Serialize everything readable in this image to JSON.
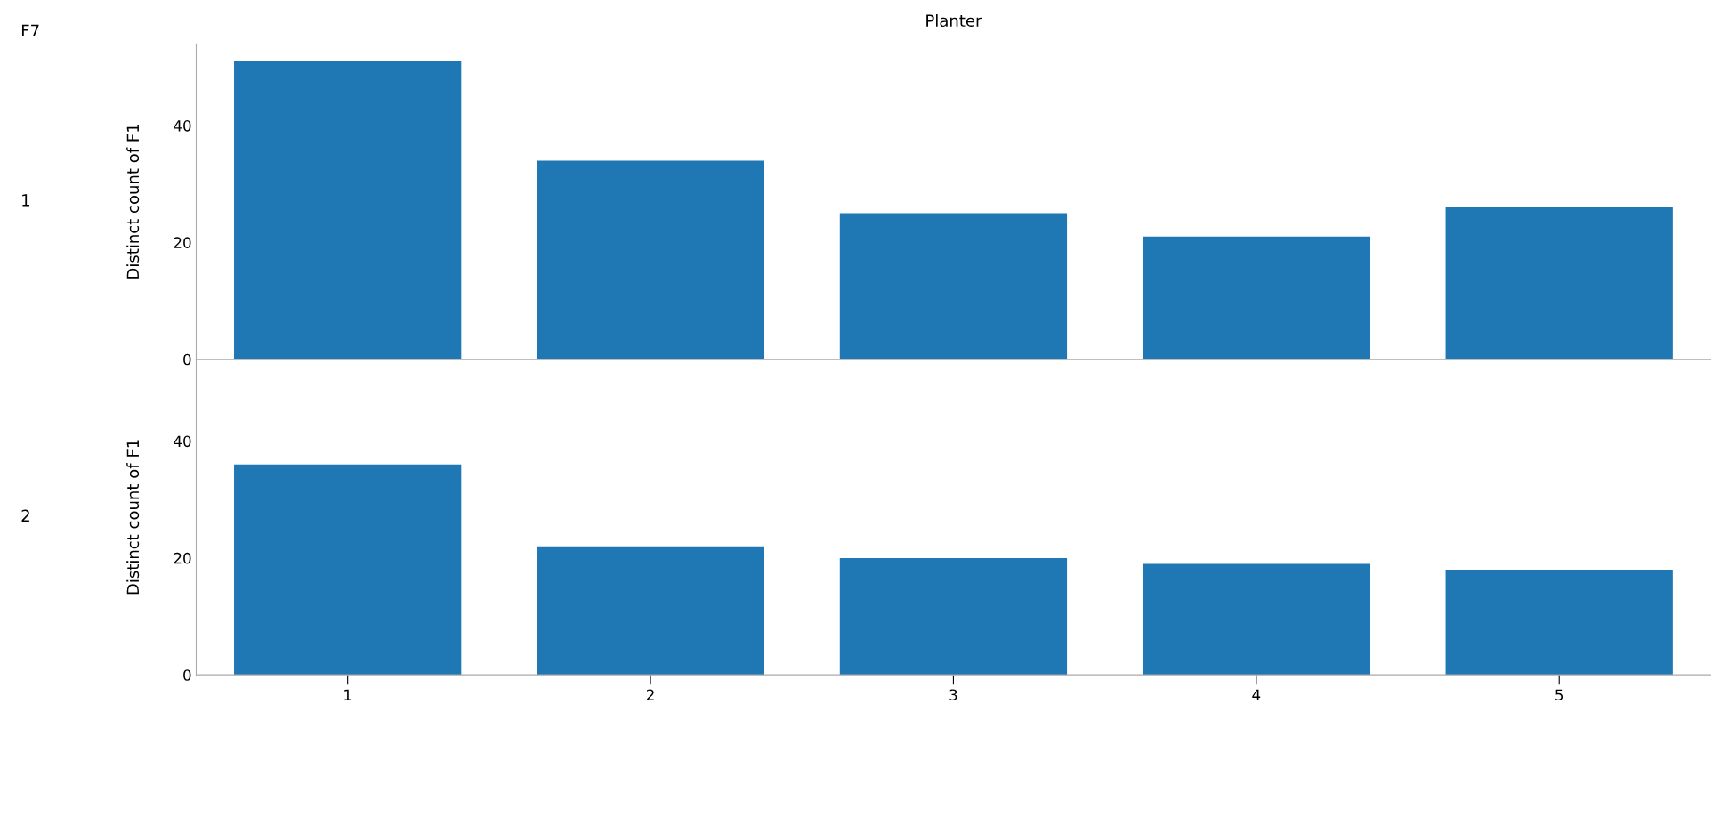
{
  "chart_data": [
    {
      "type": "bar",
      "title": "Planter",
      "annotations": [
        "F7",
        "1"
      ],
      "ylabel": "Distinct count of F1",
      "categories": [
        "1",
        "2",
        "3",
        "4",
        "5"
      ],
      "values": [
        51,
        34,
        25,
        21,
        26
      ],
      "color": "#1f77b4",
      "ylim": [
        0,
        54
      ],
      "yticks": [
        0,
        20,
        40
      ],
      "tick_labels": "y",
      "grid": false
    },
    {
      "type": "bar",
      "annotations": [
        "2"
      ],
      "ylabel": "Distinct count of F1",
      "categories": [
        "1",
        "2",
        "3",
        "4",
        "5"
      ],
      "values": [
        36,
        22,
        20,
        19,
        18
      ],
      "color": "#1f77b4",
      "ylim": [
        0,
        54
      ],
      "yticks": [
        0,
        20,
        40
      ],
      "grid": false
    }
  ]
}
